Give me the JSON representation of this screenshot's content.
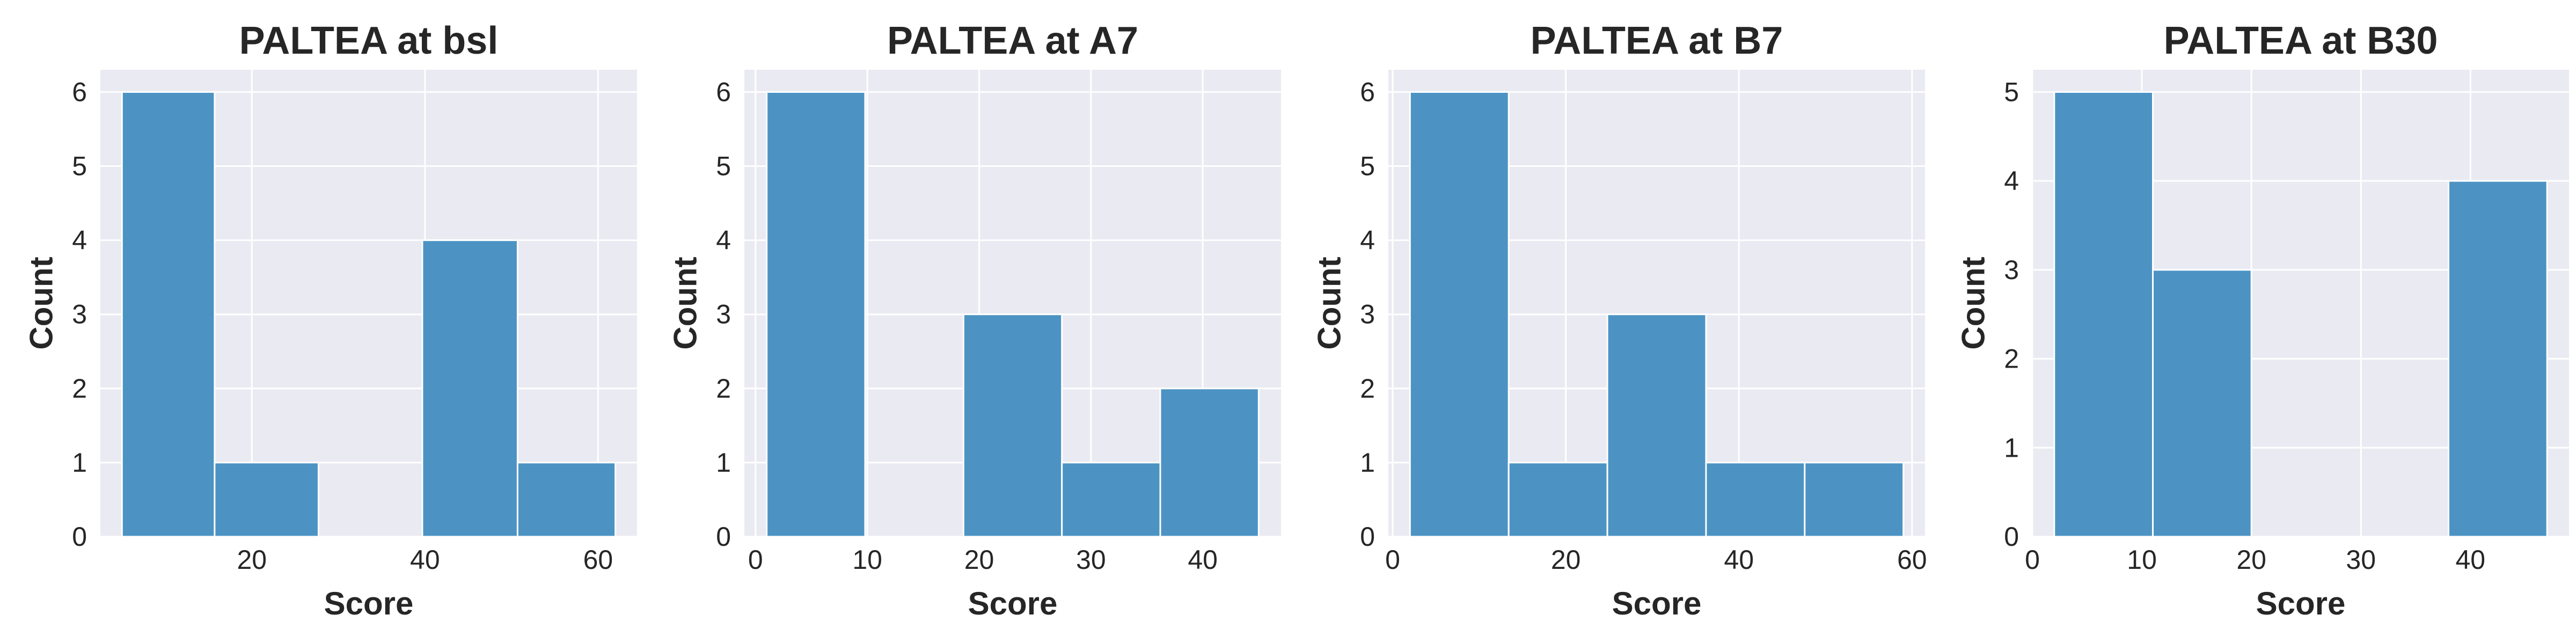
{
  "chart_data": [
    {
      "type": "bar",
      "title": "PALTEA at bsl",
      "xlabel": "Score",
      "ylabel": "Count",
      "bins": [
        [
          5,
          15.7
        ],
        [
          15.7,
          27.7
        ],
        [
          27.7,
          39.7
        ],
        [
          39.7,
          50.7
        ],
        [
          50.7,
          62
        ]
      ],
      "values": [
        6,
        1,
        0,
        4,
        1
      ],
      "xlim": [
        2.5,
        64.5
      ],
      "ylim": [
        0,
        6.3
      ],
      "xticks": [
        20,
        40,
        60
      ],
      "yticks": [
        0,
        1,
        2,
        3,
        4,
        5,
        6
      ],
      "grid": true
    },
    {
      "type": "bar",
      "title": "PALTEA at A7",
      "xlabel": "Score",
      "ylabel": "Count",
      "bins": [
        [
          1,
          9.8
        ],
        [
          9.8,
          18.6
        ],
        [
          18.6,
          27.4
        ],
        [
          27.4,
          36.2
        ],
        [
          36.2,
          45
        ]
      ],
      "values": [
        6,
        0,
        3,
        1,
        2
      ],
      "xlim": [
        -1,
        47
      ],
      "ylim": [
        0,
        6.3
      ],
      "xticks": [
        0,
        10,
        20,
        30,
        40
      ],
      "yticks": [
        0,
        1,
        2,
        3,
        4,
        5,
        6
      ],
      "grid": true
    },
    {
      "type": "bar",
      "title": "PALTEA at B7",
      "xlabel": "Score",
      "ylabel": "Count",
      "bins": [
        [
          2,
          13.4
        ],
        [
          13.4,
          24.8
        ],
        [
          24.8,
          36.2
        ],
        [
          36.2,
          47.6
        ],
        [
          47.6,
          59
        ]
      ],
      "values": [
        6,
        1,
        3,
        1,
        1
      ],
      "xlim": [
        -0.5,
        61.5
      ],
      "ylim": [
        0,
        6.3
      ],
      "xticks": [
        0,
        20,
        40,
        60
      ],
      "yticks": [
        0,
        1,
        2,
        3,
        4,
        5,
        6
      ],
      "grid": true
    },
    {
      "type": "bar",
      "title": "PALTEA at B30",
      "xlabel": "Score",
      "ylabel": "Count",
      "bins": [
        [
          2,
          11
        ],
        [
          11,
          20
        ],
        [
          20,
          29
        ],
        [
          29,
          38
        ],
        [
          38,
          47
        ]
      ],
      "values": [
        5,
        3,
        0,
        0,
        4
      ],
      "xlim": [
        0,
        49
      ],
      "ylim": [
        0,
        5.25
      ],
      "xticks": [
        0,
        10,
        20,
        30,
        40
      ],
      "yticks": [
        0,
        1,
        2,
        3,
        4,
        5
      ],
      "grid": true
    }
  ],
  "colors": {
    "bar": "#4c93c4",
    "plot_background": "#eaeaf2",
    "grid": "#ffffff",
    "text": "#262626"
  }
}
